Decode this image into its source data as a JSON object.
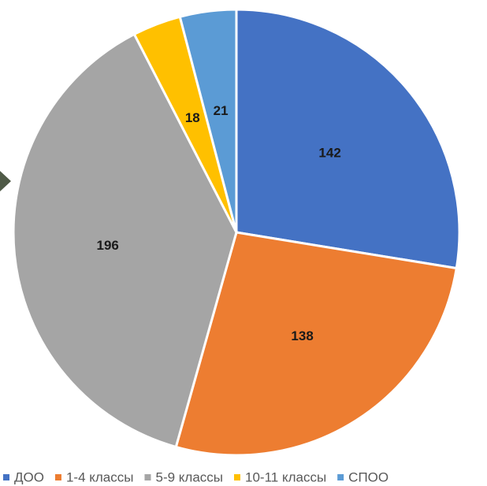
{
  "chart_data": {
    "type": "pie",
    "categories": [
      "ДОО",
      "1-4 классы",
      "5-9 классы",
      "10-11 классы",
      "СПОО"
    ],
    "values": [
      142,
      138,
      196,
      18,
      21
    ],
    "colors": [
      "#4472C4",
      "#ED7D31",
      "#A5A5A5",
      "#FFC000",
      "#5B9BD5"
    ],
    "data_labels": [
      "142",
      "138",
      "196",
      "18",
      "21"
    ],
    "start": "12 o'clock",
    "direction": "clockwise",
    "legend_position": "bottom"
  },
  "nav_arrow": {
    "icon": "triangle-right-icon",
    "color": "#4F5A47"
  }
}
